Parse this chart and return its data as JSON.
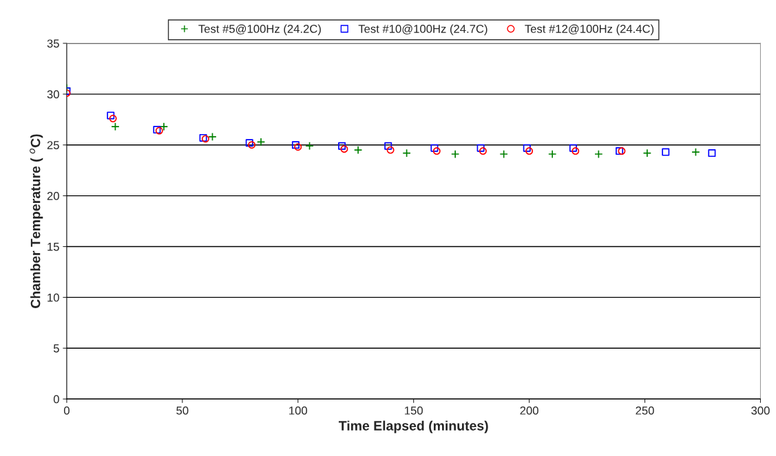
{
  "chart_data": {
    "type": "scatter",
    "xlabel": "Time Elapsed (minutes)",
    "ylabel": "Chamber Temperature ( $^{o}$C)",
    "xlim": [
      0,
      300
    ],
    "xticks": [
      0,
      50,
      100,
      150,
      200,
      250,
      300
    ],
    "ylim": [
      0,
      35
    ],
    "yticks": [
      0,
      5,
      10,
      15,
      20,
      25,
      30,
      35
    ],
    "grid": "y",
    "legend": "top",
    "series": [
      {
        "name": "Test #5@100Hz (24.2C)",
        "color": "#008000",
        "marker": "cross",
        "x": [
          0,
          21,
          42,
          63,
          84,
          105,
          126,
          147,
          168,
          189,
          210,
          230,
          251,
          272
        ],
        "values": [
          30.6,
          26.8,
          26.8,
          25.8,
          25.3,
          24.9,
          24.5,
          24.2,
          24.1,
          24.1,
          24.1,
          24.1,
          24.2,
          24.3
        ]
      },
      {
        "name": "Test #10@100Hz (24.7C)",
        "color": "#0000ff",
        "marker": "square",
        "x": [
          0,
          19,
          39,
          59,
          79,
          99,
          119,
          139,
          159,
          179,
          199,
          219,
          239,
          259,
          279
        ],
        "values": [
          30.3,
          27.9,
          26.5,
          25.7,
          25.2,
          25.0,
          24.9,
          24.9,
          24.7,
          24.7,
          24.7,
          24.7,
          24.4,
          24.3,
          24.2
        ]
      },
      {
        "name": "Test #12@100Hz (24.4C)",
        "color": "#ff0000",
        "marker": "circle",
        "x": [
          0,
          20,
          40,
          60,
          80,
          100,
          120,
          140,
          160,
          180,
          200,
          220,
          240
        ],
        "values": [
          30.1,
          27.6,
          26.4,
          25.6,
          25.0,
          24.8,
          24.6,
          24.5,
          24.4,
          24.4,
          24.4,
          24.4,
          24.4
        ]
      }
    ]
  }
}
